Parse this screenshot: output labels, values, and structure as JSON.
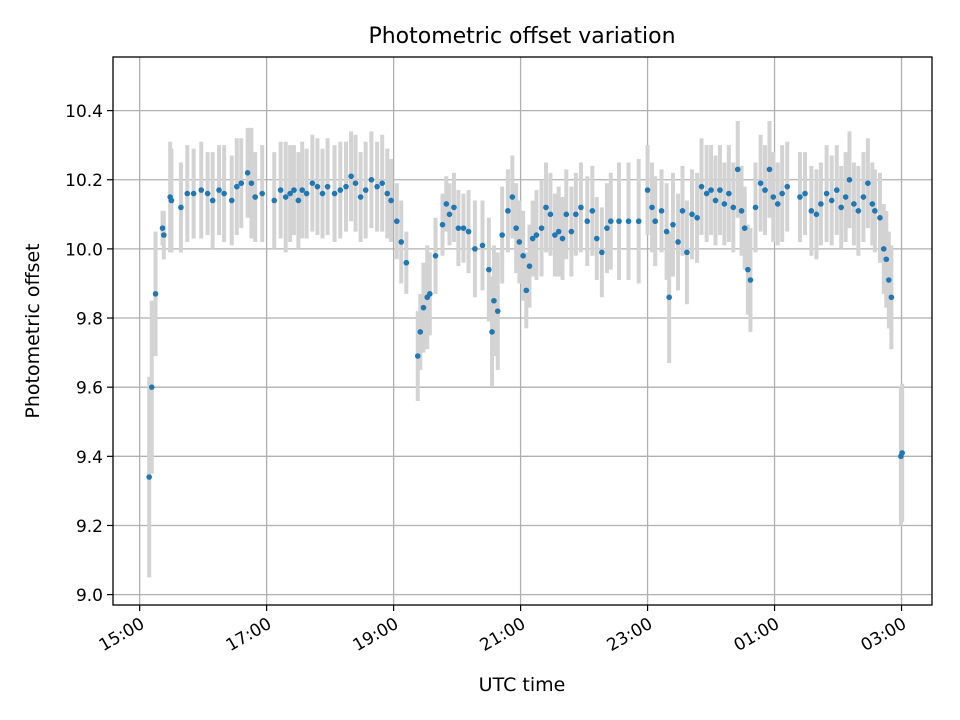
{
  "chart_data": {
    "type": "scatter",
    "title": "Photometric offset variation",
    "xlabel": "UTC time",
    "ylabel": "Photometric offset",
    "x_unit": "hours since 15:00 UTC",
    "xlim": [
      -0.42,
      12.48
    ],
    "ylim": [
      8.97,
      10.555
    ],
    "grid": true,
    "x_ticks": [
      {
        "value": 0,
        "label": "15:00"
      },
      {
        "value": 2,
        "label": "17:00"
      },
      {
        "value": 4,
        "label": "19:00"
      },
      {
        "value": 6,
        "label": "21:00"
      },
      {
        "value": 8,
        "label": "23:00"
      },
      {
        "value": 10,
        "label": "01:00"
      },
      {
        "value": 12,
        "label": "03:00"
      }
    ],
    "y_ticks": [
      {
        "value": 9.0,
        "label": "9.0"
      },
      {
        "value": 9.2,
        "label": "9.2"
      },
      {
        "value": 9.4,
        "label": "9.4"
      },
      {
        "value": 9.6,
        "label": "9.6"
      },
      {
        "value": 9.8,
        "label": "9.8"
      },
      {
        "value": 10.0,
        "label": "10.0"
      },
      {
        "value": 10.2,
        "label": "10.2"
      },
      {
        "value": 10.4,
        "label": "10.4"
      }
    ],
    "series": [
      {
        "name": "offset",
        "marker_color": "#1f77b4",
        "errorbar_color": "#d3d3d3",
        "points": [
          [
            0.15,
            9.34,
            0.29
          ],
          [
            0.19,
            9.6,
            0.25
          ],
          [
            0.25,
            9.87,
            0.18
          ],
          [
            0.36,
            10.06,
            0.05
          ],
          [
            0.38,
            10.04,
            0.07
          ],
          [
            0.48,
            10.15,
            0.16
          ],
          [
            0.5,
            10.14,
            0.15
          ],
          [
            0.65,
            10.12,
            0.13
          ],
          [
            0.75,
            10.16,
            0.14
          ],
          [
            0.85,
            10.16,
            0.13
          ],
          [
            0.97,
            10.17,
            0.14
          ],
          [
            1.07,
            10.16,
            0.12
          ],
          [
            1.15,
            10.14,
            0.14
          ],
          [
            1.25,
            10.17,
            0.13
          ],
          [
            1.33,
            10.16,
            0.14
          ],
          [
            1.45,
            10.14,
            0.13
          ],
          [
            1.53,
            10.18,
            0.14
          ],
          [
            1.6,
            10.19,
            0.13
          ],
          [
            1.7,
            10.22,
            0.13
          ],
          [
            1.76,
            10.19,
            0.16
          ],
          [
            1.82,
            10.15,
            0.13
          ],
          [
            1.93,
            10.16,
            0.14
          ],
          [
            2.12,
            10.14,
            0.14
          ],
          [
            2.22,
            10.17,
            0.14
          ],
          [
            2.3,
            10.15,
            0.16
          ],
          [
            2.37,
            10.16,
            0.14
          ],
          [
            2.43,
            10.17,
            0.13
          ],
          [
            2.5,
            10.14,
            0.14
          ],
          [
            2.56,
            10.17,
            0.14
          ],
          [
            2.63,
            10.16,
            0.13
          ],
          [
            2.72,
            10.19,
            0.14
          ],
          [
            2.8,
            10.18,
            0.14
          ],
          [
            2.88,
            10.16,
            0.13
          ],
          [
            2.96,
            10.18,
            0.14
          ],
          [
            3.07,
            10.16,
            0.14
          ],
          [
            3.16,
            10.17,
            0.14
          ],
          [
            3.25,
            10.18,
            0.13
          ],
          [
            3.33,
            10.21,
            0.13
          ],
          [
            3.4,
            10.19,
            0.14
          ],
          [
            3.48,
            10.15,
            0.13
          ],
          [
            3.56,
            10.17,
            0.14
          ],
          [
            3.65,
            10.2,
            0.14
          ],
          [
            3.74,
            10.18,
            0.13
          ],
          [
            3.82,
            10.19,
            0.14
          ],
          [
            3.9,
            10.16,
            0.13
          ],
          [
            3.96,
            10.14,
            0.12
          ],
          [
            4.05,
            10.08,
            0.11
          ],
          [
            4.12,
            10.02,
            0.12
          ],
          [
            4.2,
            9.96,
            0.09
          ],
          [
            4.38,
            9.69,
            0.13
          ],
          [
            4.42,
            9.76,
            0.11
          ],
          [
            4.47,
            9.83,
            0.13
          ],
          [
            4.53,
            9.86,
            0.15
          ],
          [
            4.57,
            9.87,
            0.12
          ],
          [
            4.66,
            9.98,
            0.11
          ],
          [
            4.77,
            10.07,
            0.09
          ],
          [
            4.83,
            10.13,
            0.08
          ],
          [
            4.88,
            10.1,
            0.09
          ],
          [
            4.95,
            10.12,
            0.1
          ],
          [
            5.02,
            10.06,
            0.11
          ],
          [
            5.1,
            10.06,
            0.1
          ],
          [
            5.18,
            10.05,
            0.12
          ],
          [
            5.28,
            10.0,
            0.14
          ],
          [
            5.4,
            10.01,
            0.13
          ],
          [
            5.5,
            9.94,
            0.15
          ],
          [
            5.55,
            9.76,
            0.16
          ],
          [
            5.58,
            9.85,
            0.16
          ],
          [
            5.64,
            9.82,
            0.17
          ],
          [
            5.71,
            10.04,
            0.14
          ],
          [
            5.8,
            10.11,
            0.12
          ],
          [
            5.87,
            10.15,
            0.12
          ],
          [
            5.93,
            10.06,
            0.13
          ],
          [
            5.98,
            10.02,
            0.12
          ],
          [
            6.04,
            9.98,
            0.13
          ],
          [
            6.09,
            9.88,
            0.11
          ],
          [
            6.14,
            9.95,
            0.12
          ],
          [
            6.19,
            10.03,
            0.11
          ],
          [
            6.25,
            10.04,
            0.13
          ],
          [
            6.33,
            10.06,
            0.14
          ],
          [
            6.4,
            10.12,
            0.13
          ],
          [
            6.47,
            10.1,
            0.12
          ],
          [
            6.54,
            10.04,
            0.12
          ],
          [
            6.6,
            10.05,
            0.13
          ],
          [
            6.66,
            10.03,
            0.12
          ],
          [
            6.72,
            10.1,
            0.13
          ],
          [
            6.8,
            10.05,
            0.13
          ],
          [
            6.87,
            10.1,
            0.12
          ],
          [
            6.95,
            10.12,
            0.13
          ],
          [
            7.05,
            10.08,
            0.13
          ],
          [
            7.13,
            10.11,
            0.13
          ],
          [
            7.2,
            10.03,
            0.12
          ],
          [
            7.28,
            9.99,
            0.13
          ],
          [
            7.36,
            10.06,
            0.13
          ],
          [
            7.42,
            10.08,
            0.14
          ],
          [
            7.55,
            10.08,
            0.17
          ],
          [
            7.7,
            10.08,
            0.17
          ],
          [
            7.86,
            10.08,
            0.18
          ],
          [
            8.0,
            10.17,
            0.13
          ],
          [
            8.07,
            10.12,
            0.13
          ],
          [
            8.12,
            10.08,
            0.13
          ],
          [
            8.22,
            10.11,
            0.12
          ],
          [
            8.3,
            10.05,
            0.14
          ],
          [
            8.34,
            9.86,
            0.19
          ],
          [
            8.4,
            10.07,
            0.15
          ],
          [
            8.48,
            10.02,
            0.14
          ],
          [
            8.55,
            10.11,
            0.13
          ],
          [
            8.62,
            9.99,
            0.15
          ],
          [
            8.7,
            10.1,
            0.13
          ],
          [
            8.78,
            10.09,
            0.13
          ],
          [
            8.85,
            10.18,
            0.14
          ],
          [
            8.93,
            10.16,
            0.14
          ],
          [
            9.0,
            10.17,
            0.13
          ],
          [
            9.07,
            10.14,
            0.13
          ],
          [
            9.14,
            10.17,
            0.13
          ],
          [
            9.21,
            10.13,
            0.12
          ],
          [
            9.28,
            10.16,
            0.14
          ],
          [
            9.35,
            10.12,
            0.13
          ],
          [
            9.42,
            10.23,
            0.14
          ],
          [
            9.48,
            10.11,
            0.13
          ],
          [
            9.53,
            10.06,
            0.12
          ],
          [
            9.58,
            9.94,
            0.13
          ],
          [
            9.62,
            9.91,
            0.15
          ],
          [
            9.7,
            10.12,
            0.13
          ],
          [
            9.78,
            10.19,
            0.14
          ],
          [
            9.85,
            10.17,
            0.13
          ],
          [
            9.92,
            10.23,
            0.14
          ],
          [
            9.98,
            10.15,
            0.13
          ],
          [
            10.05,
            10.13,
            0.12
          ],
          [
            10.12,
            10.16,
            0.14
          ],
          [
            10.2,
            10.18,
            0.13
          ],
          [
            10.4,
            10.15,
            0.13
          ],
          [
            10.48,
            10.16,
            0.12
          ],
          [
            10.58,
            10.11,
            0.13
          ],
          [
            10.66,
            10.1,
            0.13
          ],
          [
            10.73,
            10.13,
            0.12
          ],
          [
            10.82,
            10.16,
            0.14
          ],
          [
            10.9,
            10.14,
            0.13
          ],
          [
            10.98,
            10.17,
            0.13
          ],
          [
            11.05,
            10.12,
            0.12
          ],
          [
            11.12,
            10.15,
            0.13
          ],
          [
            11.18,
            10.2,
            0.14
          ],
          [
            11.25,
            10.13,
            0.12
          ],
          [
            11.32,
            10.11,
            0.13
          ],
          [
            11.4,
            10.15,
            0.13
          ],
          [
            11.47,
            10.19,
            0.13
          ],
          [
            11.54,
            10.13,
            0.12
          ],
          [
            11.58,
            10.11,
            0.12
          ],
          [
            11.66,
            10.09,
            0.13
          ],
          [
            11.72,
            10.0,
            0.13
          ],
          [
            11.76,
            9.97,
            0.14
          ],
          [
            11.8,
            9.91,
            0.14
          ],
          [
            11.84,
            9.86,
            0.15
          ],
          [
            11.99,
            9.4,
            0.2
          ],
          [
            12.01,
            9.41,
            0.2
          ]
        ]
      }
    ]
  }
}
